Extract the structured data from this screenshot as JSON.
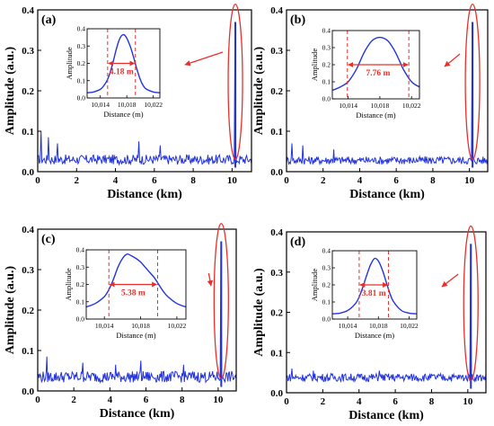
{
  "colors": {
    "signal": "#2233dd",
    "highlight": "#e8302a",
    "axis": "#000000"
  },
  "chart_data": [
    {
      "type": "line",
      "panel_label": "(a)",
      "xlabel": "Distance (km)",
      "ylabel": "Amplitude (a.u.)",
      "xlim": [
        0,
        11
      ],
      "ylim": [
        0,
        0.4
      ],
      "xticks": [
        0,
        2,
        4,
        6,
        8,
        10
      ],
      "yticks": [
        0.0,
        0.1,
        0.2,
        0.3,
        0.4
      ],
      "noise_level": 0.03,
      "noise_amplitude": 0.012,
      "noise_spikes": [
        [
          0.15,
          0.1
        ],
        [
          0.55,
          0.085
        ],
        [
          1.0,
          0.07
        ],
        [
          5.2,
          0.075
        ],
        [
          6.3,
          0.065
        ]
      ],
      "peak": {
        "x": 10.17,
        "y": 0.37
      },
      "inset": {
        "xlabel": "Distance (m)",
        "ylabel": "Amplitude",
        "xlim": [
          10012,
          10023
        ],
        "ylim": [
          0,
          0.4
        ],
        "xticks": [
          10014,
          10018,
          10022
        ],
        "xtick_labels": [
          "10,014",
          "10,018",
          "10,022"
        ],
        "yticks": [
          0.0,
          0.1,
          0.2,
          0.3,
          0.4
        ],
        "series": {
          "x": [
            10012,
            10013,
            10014,
            10014.5,
            10015,
            10015.5,
            10016,
            10016.4,
            10016.8,
            10017.2,
            10017.6,
            10018.0,
            10018.5,
            10019.0,
            10019.5,
            10020,
            10020.5,
            10021,
            10022,
            10023
          ],
          "y": [
            0.03,
            0.035,
            0.05,
            0.07,
            0.1,
            0.15,
            0.22,
            0.28,
            0.33,
            0.36,
            0.365,
            0.345,
            0.3,
            0.24,
            0.17,
            0.11,
            0.07,
            0.05,
            0.035,
            0.03
          ]
        },
        "width_markers": [
          10015.1,
          10019.3
        ],
        "width_arrow_y": 0.2,
        "width_label": "4.18 m"
      }
    },
    {
      "type": "line",
      "panel_label": "(b)",
      "xlabel": "Distance (km)",
      "ylabel": "Amplitude (a.u.)",
      "xlim": [
        0,
        11
      ],
      "ylim": [
        0,
        0.4
      ],
      "xticks": [
        0,
        2,
        4,
        6,
        8,
        10
      ],
      "yticks": [
        0.0,
        0.1,
        0.2,
        0.3,
        0.4
      ],
      "noise_level": 0.028,
      "noise_amplitude": 0.01,
      "noise_spikes": [
        [
          0.3,
          0.07
        ],
        [
          0.9,
          0.065
        ],
        [
          2.6,
          0.055
        ]
      ],
      "peak": {
        "x": 10.17,
        "y": 0.37
      },
      "inset": {
        "xlabel": "Distance (m)",
        "ylabel": "Amplitude",
        "xlim": [
          10012,
          10023
        ],
        "ylim": [
          0,
          0.4
        ],
        "xticks": [
          10014,
          10018,
          10022
        ],
        "xtick_labels": [
          "10,014",
          "10,018",
          "10,022"
        ],
        "yticks": [
          0.0,
          0.1,
          0.2,
          0.3,
          0.4
        ],
        "series": {
          "x": [
            10012,
            10013,
            10014,
            10015,
            10015.5,
            10016,
            10016.5,
            10017,
            10017.5,
            10018,
            10018.5,
            10019,
            10019.5,
            10020,
            10020.5,
            10021,
            10022,
            10023
          ],
          "y": [
            0.05,
            0.07,
            0.1,
            0.17,
            0.22,
            0.27,
            0.31,
            0.34,
            0.355,
            0.36,
            0.355,
            0.34,
            0.31,
            0.27,
            0.22,
            0.17,
            0.1,
            0.07
          ]
        },
        "width_markers": [
          10013.9,
          10021.66
        ],
        "width_arrow_y": 0.2,
        "width_label": "7.76 m"
      }
    },
    {
      "type": "line",
      "panel_label": "(c)",
      "xlabel": "Distance (km)",
      "ylabel": "Amplitude (a.u.)",
      "xlim": [
        0,
        11
      ],
      "ylim": [
        0,
        0.4
      ],
      "xticks": [
        0,
        2,
        4,
        6,
        8,
        10
      ],
      "yticks": [
        0.0,
        0.1,
        0.2,
        0.3,
        0.4
      ],
      "noise_level": 0.035,
      "noise_amplitude": 0.014,
      "noise_spikes": [
        [
          0.5,
          0.085
        ],
        [
          2.5,
          0.07
        ],
        [
          4.3,
          0.065
        ],
        [
          5.7,
          0.075
        ],
        [
          8.1,
          0.065
        ]
      ],
      "peak": {
        "x": 10.17,
        "y": 0.37
      },
      "inset": {
        "xlabel": "Distance (m)",
        "ylabel": "Amplitude",
        "xlim": [
          10012,
          10023
        ],
        "ylim": [
          0,
          0.4
        ],
        "xticks": [
          10014,
          10018,
          10022
        ],
        "xtick_labels": [
          "10,014",
          "10,018",
          "10,022"
        ],
        "yticks": [
          0.0,
          0.1,
          0.2,
          0.3,
          0.4
        ],
        "series": {
          "x": [
            10012,
            10013,
            10014,
            10014.5,
            10015,
            10015.5,
            10016,
            10016.5,
            10017,
            10017.5,
            10018,
            10018.5,
            10019,
            10019.5,
            10020,
            10020.5,
            10021,
            10022,
            10023
          ],
          "y": [
            0.07,
            0.09,
            0.13,
            0.17,
            0.23,
            0.3,
            0.35,
            0.375,
            0.365,
            0.35,
            0.33,
            0.3,
            0.27,
            0.24,
            0.2,
            0.16,
            0.13,
            0.09,
            0.07
          ]
        },
        "width_markers": [
          10014.5,
          10019.88
        ],
        "width_arrow_y": 0.2,
        "width_label": "5.38 m"
      }
    },
    {
      "type": "line",
      "panel_label": "(d)",
      "xlabel": "Distance (km)",
      "ylabel": "Amplitude (a.u.)",
      "xlim": [
        0,
        11
      ],
      "ylim": [
        0,
        0.4
      ],
      "xticks": [
        0,
        2,
        4,
        6,
        8,
        10
      ],
      "yticks": [
        0.0,
        0.1,
        0.2,
        0.3,
        0.4
      ],
      "noise_level": 0.038,
      "noise_amplitude": 0.01,
      "noise_spikes": [
        [
          0.3,
          0.06
        ],
        [
          1.5,
          0.055
        ],
        [
          5.1,
          0.055
        ]
      ],
      "peak": {
        "x": 10.17,
        "y": 0.37
      },
      "inset": {
        "xlabel": "Distance (m)",
        "ylabel": "Amplitude",
        "xlim": [
          10012,
          10023
        ],
        "ylim": [
          0,
          0.4
        ],
        "xticks": [
          10014,
          10018,
          10022
        ],
        "xtick_labels": [
          "10,014",
          "10,018",
          "10,022"
        ],
        "yticks": [
          0.0,
          0.1,
          0.2,
          0.3,
          0.4
        ],
        "series": {
          "x": [
            10012,
            10013,
            10014,
            10015,
            10015.5,
            10016,
            10016.5,
            10017,
            10017.5,
            10018,
            10018.5,
            10019,
            10019.5,
            10020,
            10021,
            10022,
            10023
          ],
          "y": [
            0.03,
            0.035,
            0.05,
            0.09,
            0.13,
            0.19,
            0.26,
            0.32,
            0.355,
            0.34,
            0.29,
            0.22,
            0.15,
            0.1,
            0.05,
            0.035,
            0.03
          ]
        },
        "width_markers": [
          10015.5,
          10019.31
        ],
        "width_arrow_y": 0.2,
        "width_label": "3.81 m"
      }
    }
  ]
}
